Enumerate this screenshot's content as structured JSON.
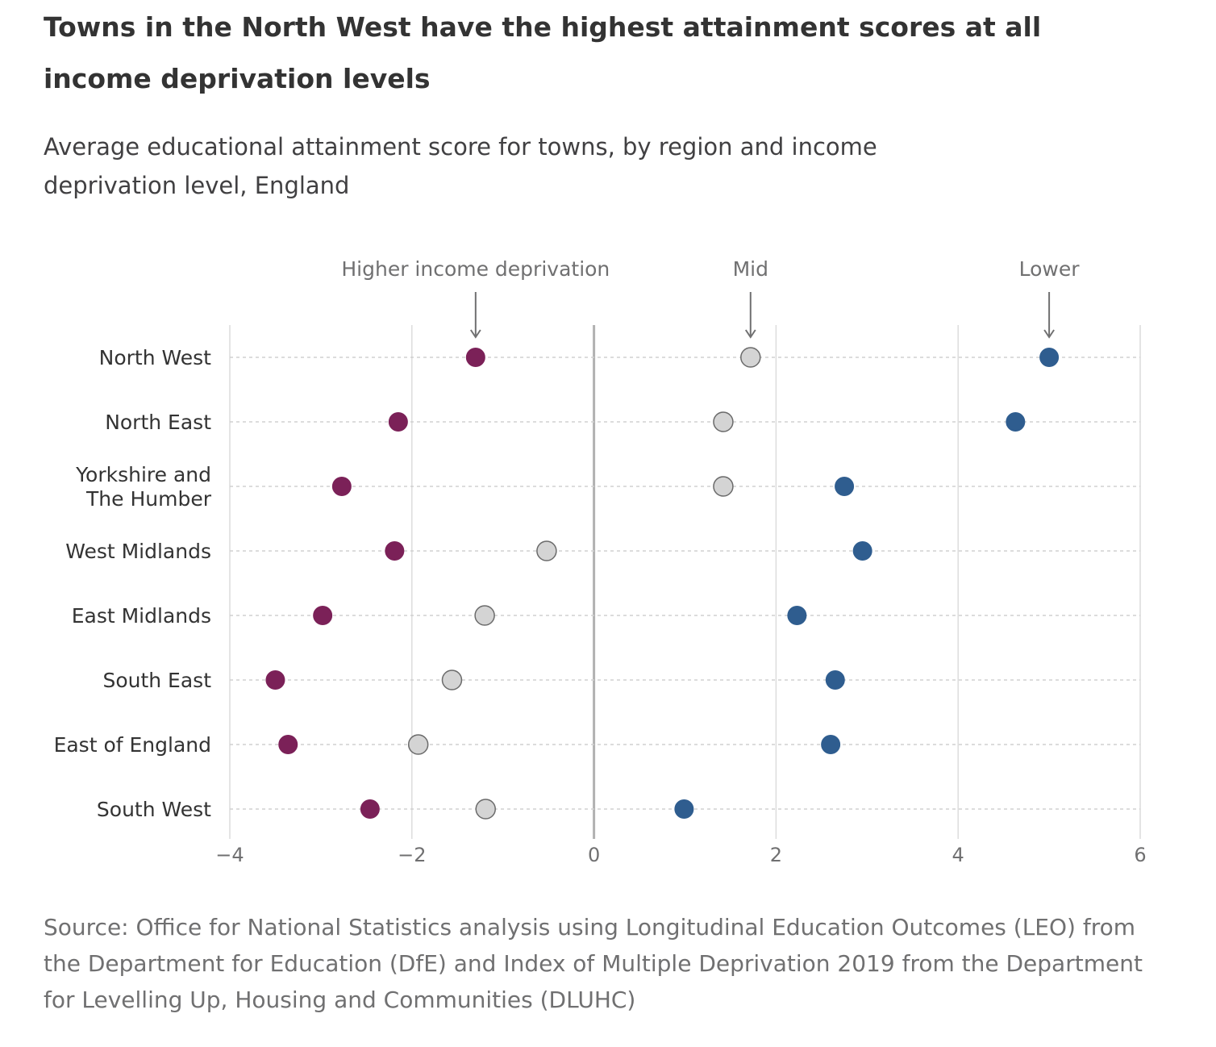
{
  "title": "Towns in the North West have the highest attainment scores at all income deprivation levels",
  "subtitle": "Average educational attainment score for towns, by region and income deprivation level, England",
  "source": "Source: Office for National Statistics analysis using Longitudinal Education Outcomes (LEO) from the Department for Education (DfE) and Index of Multiple Deprivation 2019 from the Department for Levelling Up, Housing and Communities (DLUHC)",
  "chart_data": {
    "type": "scatter",
    "title": "Towns in the North West have the highest attainment scores at all income deprivation levels",
    "subtitle": "Average educational attainment score for towns, by region and income deprivation level, England",
    "categories": [
      [
        "North West"
      ],
      [
        "North East"
      ],
      [
        "Yorkshire and",
        "The Humber"
      ],
      [
        "West Midlands"
      ],
      [
        "East Midlands"
      ],
      [
        "South East"
      ],
      [
        "East of England"
      ],
      [
        "South West"
      ]
    ],
    "series": [
      {
        "name": "Higher income deprivation",
        "color": "#7b2158",
        "values": [
          -1.3,
          -2.15,
          -2.77,
          -2.19,
          -2.98,
          -3.5,
          -3.36,
          -2.46
        ]
      },
      {
        "name": "Mid",
        "color": "#d4d4d4",
        "values": [
          1.72,
          1.42,
          1.42,
          -0.52,
          -1.2,
          -1.56,
          -1.93,
          -1.19
        ]
      },
      {
        "name": "Lower",
        "color": "#2f5d8f",
        "values": [
          5.0,
          4.63,
          2.75,
          2.95,
          2.23,
          2.65,
          2.6,
          0.99
        ]
      }
    ],
    "xlim": [
      -4,
      6
    ],
    "xticks": [
      "−4",
      "−2",
      "0",
      "2",
      "4",
      "6"
    ],
    "xtick_values": [
      -4,
      -2,
      0,
      2,
      4,
      6
    ],
    "annotations": [
      {
        "text": "Higher income deprivation",
        "series": 0
      },
      {
        "text": "Mid",
        "series": 1
      },
      {
        "text": "Lower",
        "series": 2
      }
    ],
    "grid": true,
    "legend": "annotations above first row"
  }
}
